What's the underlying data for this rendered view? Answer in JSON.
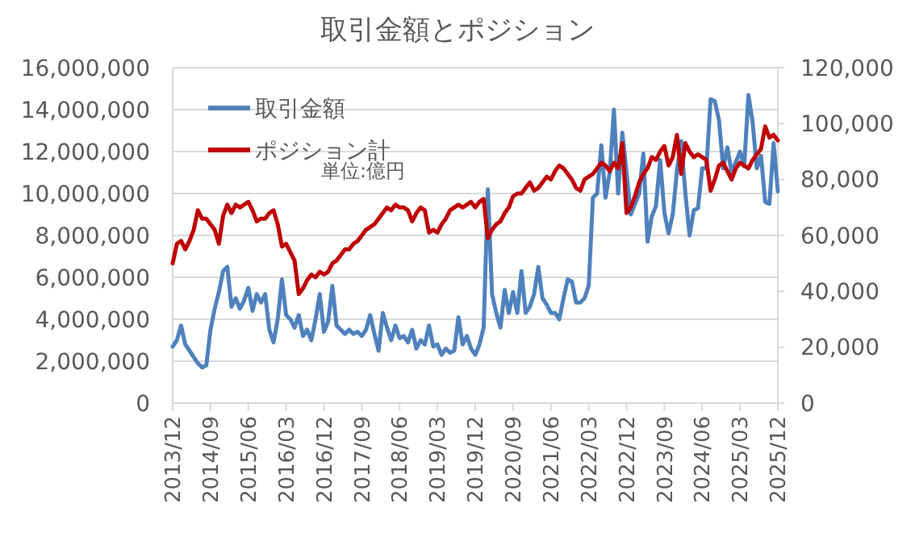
{
  "chart_data": {
    "type": "line",
    "title": "取引金額とポジション",
    "annotations": [
      "単位:億円"
    ],
    "categories": [
      "2013/12",
      null,
      null,
      null,
      null,
      null,
      null,
      null,
      null,
      "2014/09",
      null,
      null,
      null,
      null,
      null,
      null,
      null,
      null,
      "2015/06",
      null,
      null,
      null,
      null,
      null,
      null,
      null,
      null,
      "2016/03",
      null,
      null,
      null,
      null,
      null,
      null,
      null,
      null,
      "2016/12",
      null,
      null,
      null,
      null,
      null,
      null,
      null,
      null,
      "2017/09",
      null,
      null,
      null,
      null,
      null,
      null,
      null,
      null,
      "2018/06",
      null,
      null,
      null,
      null,
      null,
      null,
      null,
      null,
      "2019/03",
      null,
      null,
      null,
      null,
      null,
      null,
      null,
      null,
      "2019/12",
      null,
      null,
      null,
      null,
      null,
      null,
      null,
      null,
      "2020/09",
      null,
      null,
      null,
      null,
      null,
      null,
      null,
      null,
      "2021/06",
      null,
      null,
      null,
      null,
      null,
      null,
      null,
      null,
      "2022/03",
      null,
      null,
      null,
      null,
      null,
      null,
      null,
      null,
      "2022/12",
      null,
      null,
      null,
      null,
      null,
      null,
      null,
      null,
      "2023/09",
      null,
      null,
      null,
      null,
      null,
      null,
      null,
      null,
      "2024/06",
      null,
      null,
      null,
      null,
      null,
      null,
      null,
      null,
      "2025/03",
      null,
      null,
      null,
      null,
      null,
      null,
      null,
      null,
      "2025/12"
    ],
    "series": [
      {
        "name": "取引金額",
        "color": "#4f81bd",
        "values": [
          2700000,
          3000000,
          3700000,
          2800000,
          2500000,
          2200000,
          1900000,
          1700000,
          1800000,
          3500000,
          4500000,
          5300000,
          6300000,
          6500000,
          4600000,
          5000000,
          4500000,
          4900000,
          5500000,
          4400000,
          5200000,
          4800000,
          5200000,
          3500000,
          2900000,
          4000000,
          5900000,
          4200000,
          4000000,
          3600000,
          4200000,
          3200000,
          3500000,
          3000000,
          4000000,
          5200000,
          3400000,
          3900000,
          5600000,
          3700000,
          3500000,
          3300000,
          3500000,
          3300000,
          3400000,
          3200000,
          3500000,
          4200000,
          3300000,
          2500000,
          4300000,
          3600000,
          3000000,
          3700000,
          3100000,
          3200000,
          2900000,
          3500000,
          2600000,
          3000000,
          2800000,
          3700000,
          2700000,
          2800000,
          2300000,
          2600000,
          2400000,
          2500000,
          4100000,
          2800000,
          3200000,
          2600000,
          2300000,
          2800000,
          3600000,
          10200000,
          5200000,
          4300000,
          3600000,
          5400000,
          4300000,
          5300000,
          4300000,
          6300000,
          4300000,
          4600000,
          5200000,
          6500000,
          5000000,
          4700000,
          4300000,
          4300000,
          4000000,
          5000000,
          5900000,
          5800000,
          4800000,
          4800000,
          5000000,
          5600000,
          9800000,
          10000000,
          12300000,
          9800000,
          11000000,
          14000000,
          10000000,
          12900000,
          11000000,
          9000000,
          9500000,
          10000000,
          11900000,
          7700000,
          8900000,
          9400000,
          11600000,
          9100000,
          8100000,
          9000000,
          11100000,
          12500000,
          10000000,
          8000000,
          9200000,
          9300000,
          11200000,
          11200000,
          14500000,
          14400000,
          13500000,
          11200000,
          12200000,
          11000000,
          11500000,
          12000000,
          11300000,
          14700000,
          13400000,
          11200000,
          11800000,
          9600000,
          9500000,
          12400000,
          10100000
        ]
      },
      {
        "name": "ポジション計",
        "color": "#c00000",
        "axis": "y2",
        "values": [
          50000,
          57000,
          58000,
          55000,
          58000,
          62000,
          69000,
          66000,
          66000,
          64000,
          62000,
          57000,
          67000,
          71000,
          68000,
          71000,
          70000,
          71000,
          72000,
          69000,
          65000,
          66000,
          66000,
          68000,
          69000,
          64000,
          56000,
          57000,
          54000,
          51000,
          39000,
          41000,
          44000,
          46000,
          45000,
          47000,
          46000,
          47000,
          50000,
          51000,
          53000,
          55000,
          55000,
          57000,
          58000,
          60000,
          62000,
          63000,
          64000,
          66000,
          68000,
          70000,
          69000,
          71000,
          70000,
          70000,
          69000,
          65000,
          68000,
          70000,
          69000,
          61000,
          62000,
          61000,
          64000,
          66000,
          69000,
          70000,
          71000,
          70000,
          71000,
          72000,
          70000,
          72000,
          73000,
          59000,
          62000,
          64000,
          65000,
          68000,
          70000,
          74000,
          75000,
          75000,
          77000,
          79000,
          76000,
          77000,
          79000,
          81000,
          80000,
          83000,
          85000,
          84000,
          82000,
          80000,
          77000,
          76000,
          80000,
          81000,
          82000,
          84000,
          86000,
          85000,
          83000,
          86000,
          84000,
          93000,
          68000,
          70000,
          74000,
          79000,
          82000,
          84000,
          88000,
          87000,
          90000,
          92000,
          85000,
          88000,
          96000,
          82000,
          93000,
          90000,
          88000,
          89000,
          88000,
          87000,
          76000,
          80000,
          85000,
          86000,
          83000,
          80000,
          84000,
          86000,
          85000,
          84000,
          87000,
          89000,
          91000,
          99000,
          95000,
          96000,
          94000
        ]
      }
    ],
    "ylim": [
      0,
      16000000
    ],
    "yticks": [
      0,
      {
        "value": 2000000,
        "label": "2,000,000"
      },
      {
        "value": 4000000,
        "label": "4,000,000"
      },
      {
        "value": 6000000,
        "label": "6,000,000"
      },
      {
        "value": 8000000,
        "label": "8,000,000"
      },
      {
        "value": 10000000,
        "label": "10,000,000"
      },
      {
        "value": 12000000,
        "label": "12,000,000"
      },
      {
        "value": 14000000,
        "label": "14,000,000"
      },
      {
        "value": 16000000,
        "label": "16,000,000"
      }
    ],
    "y2lim": [
      0,
      120000
    ],
    "y2ticks": [
      0,
      {
        "value": 20000,
        "label": "20,000"
      },
      {
        "value": 40000,
        "label": "40,000"
      },
      {
        "value": 60000,
        "label": "60,000"
      },
      {
        "value": 80000,
        "label": "80,000"
      },
      {
        "value": 100000,
        "label": "100,000"
      },
      {
        "value": 120000,
        "label": "120,000"
      }
    ],
    "grid": "y",
    "legend": "top left",
    "marker": "none",
    "line_style": "solid"
  }
}
